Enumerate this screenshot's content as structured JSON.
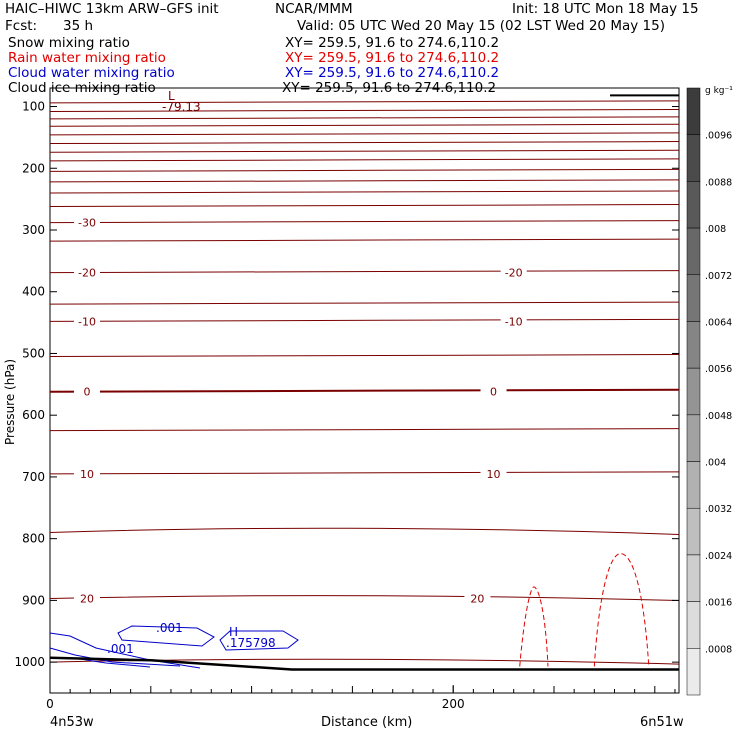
{
  "header": {
    "model": "HAIC–HIWC 13km ARW–GFS init",
    "center": "NCAR/MMM",
    "init": "Init: 18 UTC Mon 18 May 15",
    "fcst_label": "Fcst:",
    "fcst_value": "35 h",
    "valid": "Valid: 05 UTC Wed 20 May 15 (02 LST Wed 20 May 15)"
  },
  "fields": [
    {
      "name": "Snow mixing ratio",
      "xy": "XY= 259.5, 91.6 to 274.6,110.2",
      "color": "#000000"
    },
    {
      "name": "Rain water mixing ratio",
      "xy": "XY= 259.5, 91.6 to 274.6,110.2",
      "color": "#e00000"
    },
    {
      "name": "Cloud water mixing ratio",
      "xy": "XY= 259.5, 91.6 to 274.6,110.2",
      "color": "#0000cc"
    },
    {
      "name": "Cloud ice mixing ratio",
      "xy": "XY= 259.5, 91.6 to 274.6,110.2",
      "color": "#000000"
    }
  ],
  "chart_data": {
    "type": "contour",
    "xlabel": "Distance (km)",
    "ylabel": "Pressure (hPa)",
    "xlim": [
      0,
      312
    ],
    "ylim": [
      1050,
      70
    ],
    "x_ticks": [
      0,
      200
    ],
    "y_ticks": [
      100,
      200,
      300,
      400,
      500,
      600,
      700,
      800,
      900,
      1000
    ],
    "x_endpoint_labels": [
      "4n53w",
      "6n51w"
    ],
    "colorbar": {
      "unit": "g kg⁻¹",
      "labels": [
        ".0096",
        ".0088",
        ".008",
        ".0072",
        ".0064",
        ".0056",
        ".0048",
        ".004",
        ".0032",
        ".0024",
        ".0016",
        ".0008"
      ]
    },
    "temperature_isotherms": [
      {
        "label": "-30",
        "p": 288
      },
      {
        "label": "-20",
        "p": 369,
        "label2": "-20"
      },
      {
        "label": "-10",
        "p": 448,
        "label2": "-10"
      },
      {
        "label": "0",
        "p": 562,
        "label2": "0"
      },
      {
        "label": "10",
        "p": 695,
        "label2": "10"
      },
      {
        "label": "20",
        "p": 897,
        "label2": "20"
      }
    ],
    "temperature_low": {
      "marker": "L",
      "value": "-79.13",
      "x": 60,
      "p": 82
    },
    "cloud_water": {
      "contour_labels": [
        ".001",
        ".001"
      ],
      "max_marker": "H",
      "max_value": ".175798"
    }
  }
}
